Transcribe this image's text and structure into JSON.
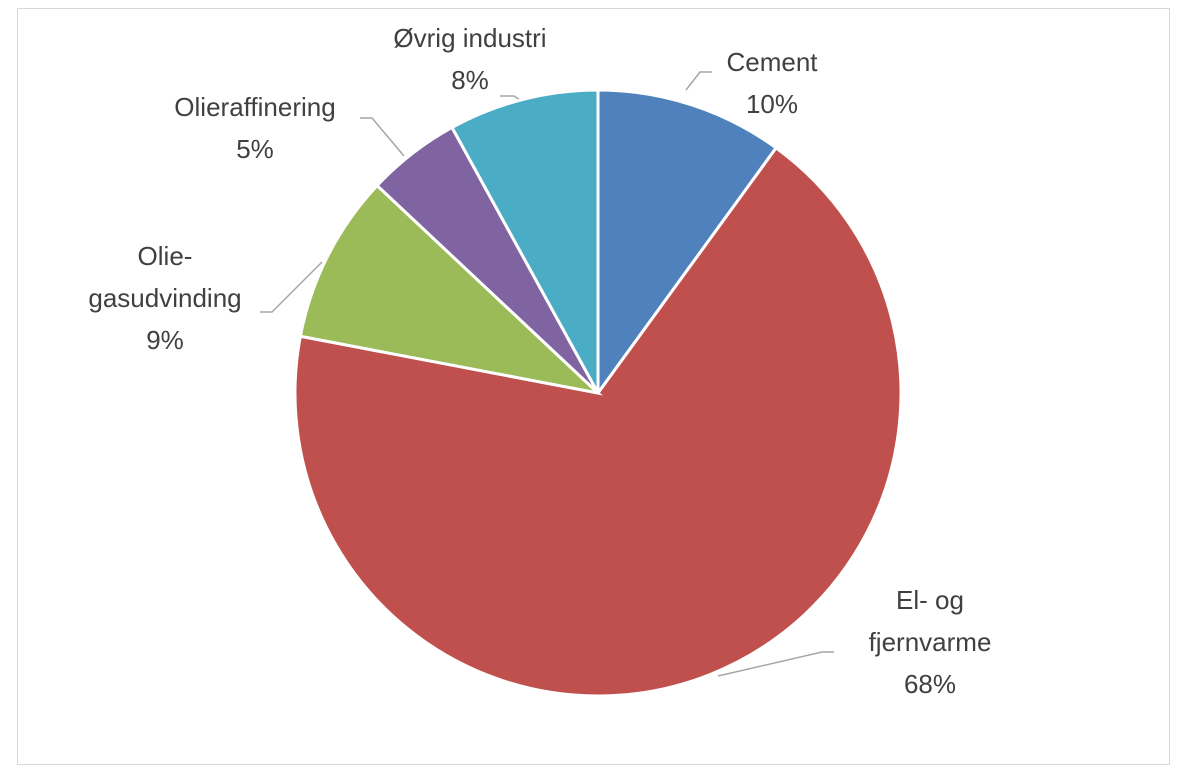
{
  "chart_data": {
    "type": "pie",
    "categories": [
      "Cement",
      "El- og\nfjernvarme",
      "Olie-\ngasudvinding",
      "Olieraffinering",
      "Øvrig industri"
    ],
    "values": [
      10,
      68,
      9,
      5,
      8
    ],
    "value_labels": [
      "10%",
      "68%",
      "9%",
      "5%",
      "8%"
    ],
    "colors": [
      "#4f81bd",
      "#c0504d",
      "#9bbb59",
      "#8064a2",
      "#4bacc6"
    ]
  }
}
